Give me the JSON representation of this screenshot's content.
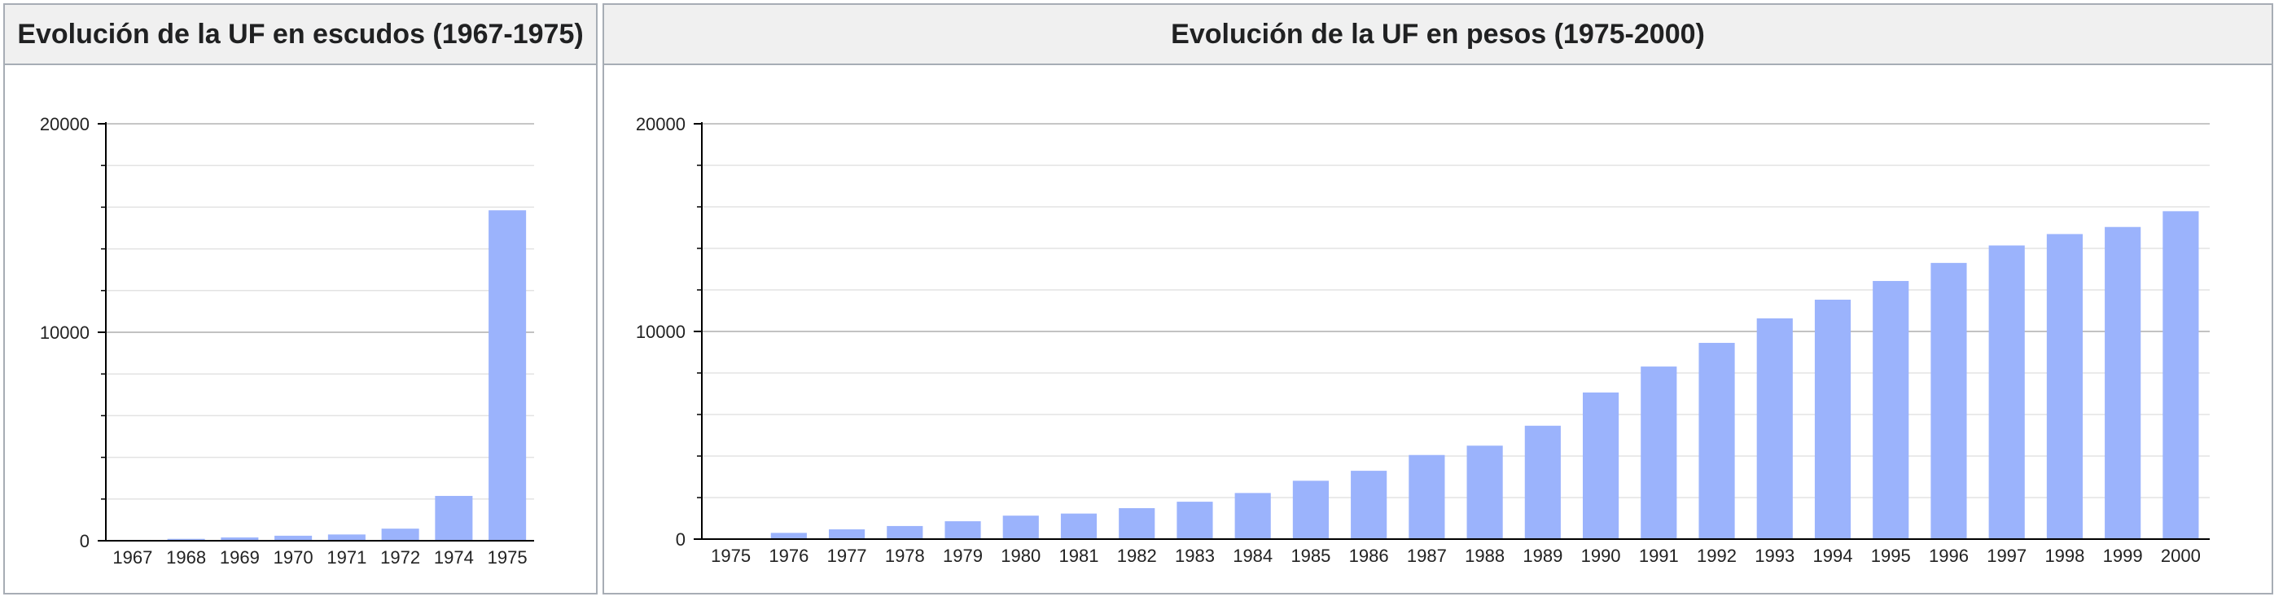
{
  "colors": {
    "bar": "#9bb3fc",
    "grid": "#e3e3e3",
    "major_grid": "#b3b3b3",
    "axis": "#000000"
  },
  "chart_data": [
    {
      "type": "bar",
      "title": "Evolución de la UF en escudos (1967-1975)",
      "xlabel": "",
      "ylabel": "",
      "ylim": [
        0,
        20000
      ],
      "y_ticks": [
        0,
        10000,
        20000
      ],
      "y_tick_labels": [
        "0",
        "10000",
        "20000"
      ],
      "grid": true,
      "categories": [
        "1967",
        "1968",
        "1969",
        "1970",
        "1971",
        "1972",
        "1974",
        "1975"
      ],
      "values": [
        40,
        90,
        160,
        240,
        300,
        580,
        2150,
        15850
      ]
    },
    {
      "type": "bar",
      "title": "Evolución de la UF en pesos (1975-2000)",
      "xlabel": "",
      "ylabel": "",
      "ylim": [
        0,
        20000
      ],
      "y_ticks": [
        0,
        10000,
        20000
      ],
      "y_tick_labels": [
        "0",
        "10000",
        "20000"
      ],
      "grid": true,
      "categories": [
        "1975",
        "1976",
        "1977",
        "1978",
        "1979",
        "1980",
        "1981",
        "1982",
        "1983",
        "1984",
        "1985",
        "1986",
        "1987",
        "1988",
        "1989",
        "1990",
        "1991",
        "1992",
        "1993",
        "1994",
        "1995",
        "1996",
        "1997",
        "1998",
        "1999",
        "2000"
      ],
      "values": [
        20,
        300,
        470,
        630,
        860,
        1130,
        1230,
        1490,
        1800,
        2220,
        2810,
        3290,
        4050,
        4500,
        5460,
        7060,
        8310,
        9450,
        10630,
        11530,
        12430,
        13300,
        14140,
        14690,
        15030,
        15790
      ]
    }
  ]
}
